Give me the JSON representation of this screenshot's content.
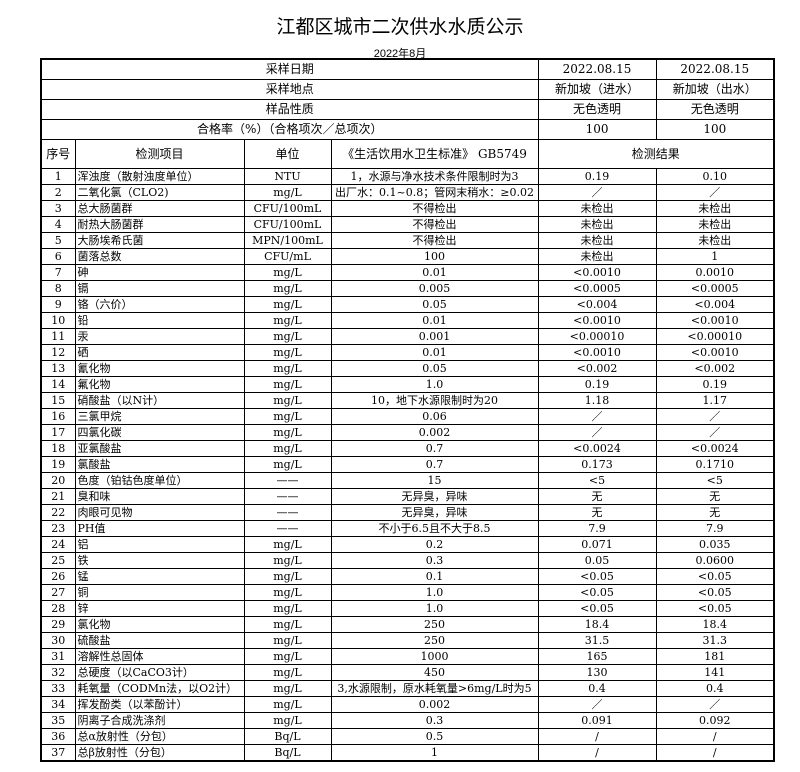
{
  "title": "江都区城市二次供水水质公示",
  "subtitle": "2022年8月",
  "info": [
    {
      "label": "采样日期",
      "a": "2022.08.15",
      "b": "2022.08.15"
    },
    {
      "label": "采样地点",
      "a": "新加坡（进水）",
      "b": "新加坡（出水）"
    },
    {
      "label": "样品性质",
      "a": "无色透明",
      "b": "无色透明"
    },
    {
      "label": "合格率（%）（合格项次／总项次）",
      "a": "100",
      "b": "100"
    }
  ],
  "headers": {
    "no": "序号",
    "item": "检测项目",
    "unit": "单位",
    "std": "《生活饮用水卫生标准》 GB5749",
    "result": "检测结果"
  },
  "rows": [
    [
      "1",
      "浑浊度（散射浊度单位）",
      "NTU",
      "1，水源与净水技术条件限制时为3",
      "0.19",
      "0.10"
    ],
    [
      "2",
      "二氧化氯（CLO2)",
      "mg/L",
      "出厂水：0.1~0.8；管网末稍水：≥0.02",
      "／",
      "／"
    ],
    [
      "3",
      "总大肠菌群",
      "CFU/100mL",
      "不得检出",
      "未检出",
      "未检出"
    ],
    [
      "4",
      "耐热大肠菌群",
      "CFU/100mL",
      "不得检出",
      "未检出",
      "未检出"
    ],
    [
      "5",
      "大肠埃希氏菌",
      "MPN/100mL",
      "不得检出",
      "未检出",
      "未检出"
    ],
    [
      "6",
      "菌落总数",
      "CFU/mL",
      "100",
      "未检出",
      "1"
    ],
    [
      "7",
      "砷",
      "mg/L",
      "0.01",
      "<0.0010",
      "0.0010"
    ],
    [
      "8",
      "镉",
      "mg/L",
      "0.005",
      "<0.0005",
      "<0.0005"
    ],
    [
      "9",
      "铬（六价）",
      "mg/L",
      "0.05",
      "<0.004",
      "<0.004"
    ],
    [
      "10",
      "铅",
      "mg/L",
      "0.01",
      "<0.0010",
      "<0.0010"
    ],
    [
      "11",
      "汞",
      "mg/L",
      "0.001",
      "<0.00010",
      "<0.00010"
    ],
    [
      "12",
      "硒",
      "mg/L",
      "0.01",
      "<0.0010",
      "<0.0010"
    ],
    [
      "13",
      "氰化物",
      "mg/L",
      "0.05",
      "<0.002",
      "<0.002"
    ],
    [
      "14",
      "氟化物",
      "mg/L",
      "1.0",
      "0.19",
      "0.19"
    ],
    [
      "15",
      "硝酸盐（以N计）",
      "mg/L",
      "10，地下水源限制时为20",
      "1.18",
      "1.17"
    ],
    [
      "16",
      "三氯甲烷",
      "mg/L",
      "0.06",
      "／",
      "／"
    ],
    [
      "17",
      "四氯化碳",
      "mg/L",
      "0.002",
      "／",
      "／"
    ],
    [
      "18",
      "亚氯酸盐",
      "mg/L",
      "0.7",
      "<0.0024",
      "<0.0024"
    ],
    [
      "19",
      "氯酸盐",
      "mg/L",
      "0.7",
      "0.173",
      "0.1710"
    ],
    [
      "20",
      "色度（铂钴色度单位）",
      "——",
      "15",
      "<5",
      "<5"
    ],
    [
      "21",
      "臭和味",
      "——",
      "无异臭，异味",
      "无",
      "无"
    ],
    [
      "22",
      "肉眼可见物",
      "——",
      "无异臭，异味",
      "无",
      "无"
    ],
    [
      "23",
      "PH值",
      "——",
      "不小于6.5且不大于8.5",
      "7.9",
      "7.9"
    ],
    [
      "24",
      "铝",
      "mg/L",
      "0.2",
      "0.071",
      "0.035"
    ],
    [
      "25",
      "铁",
      "mg/L",
      "0.3",
      "0.05",
      "0.0600"
    ],
    [
      "26",
      "锰",
      "mg/L",
      "0.1",
      "<0.05",
      "<0.05"
    ],
    [
      "27",
      "铜",
      "mg/L",
      "1.0",
      "<0.05",
      "<0.05"
    ],
    [
      "28",
      "锌",
      "mg/L",
      "1.0",
      "<0.05",
      "<0.05"
    ],
    [
      "29",
      "氯化物",
      "mg/L",
      "250",
      "18.4",
      "18.4"
    ],
    [
      "30",
      "硫酸盐",
      "mg/L",
      "250",
      "31.5",
      "31.3"
    ],
    [
      "31",
      "溶解性总固体",
      "mg/L",
      "1000",
      "165",
      "181"
    ],
    [
      "32",
      "总硬度（以CaCO3计）",
      "mg/L",
      "450",
      "130",
      "141"
    ],
    [
      "33",
      "耗氧量（CODMn法，以O2计）",
      "mg/L",
      "3,水源限制，原水耗氧量>6mg/L时为5",
      "0.4",
      "0.4"
    ],
    [
      "34",
      "挥发酚类（以苯酚计）",
      "mg/L",
      "0.002",
      "／",
      "／"
    ],
    [
      "35",
      "阴离子合成洗涤剂",
      "mg/L",
      "0.3",
      "0.091",
      "0.092"
    ],
    [
      "36",
      "总α放射性（分包）",
      "Bq/L",
      "0.5",
      "/",
      "/"
    ],
    [
      "37",
      "总β放射性（分包）",
      "Bq/L",
      "1",
      "/",
      "/"
    ]
  ]
}
